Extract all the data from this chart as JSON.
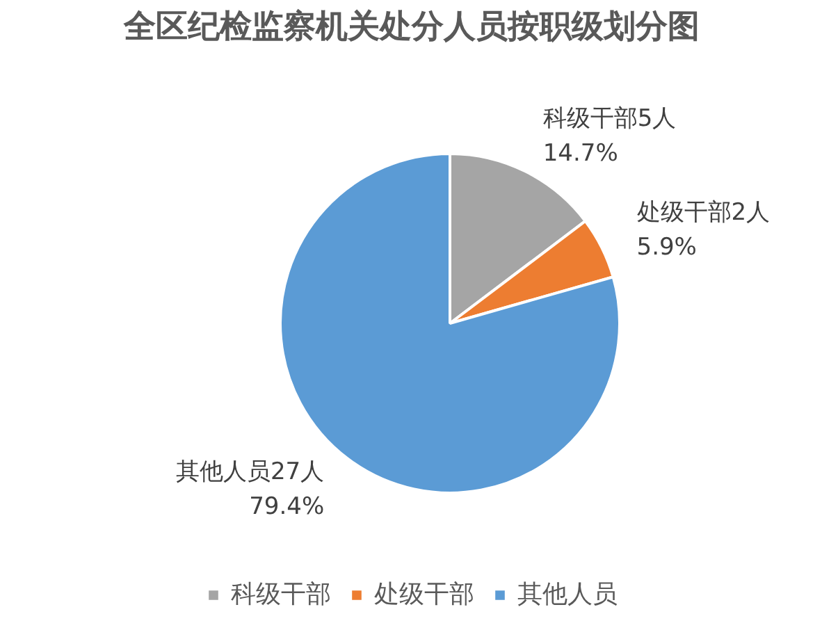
{
  "chart_data": {
    "type": "pie",
    "title": "全区纪检监察机关处分人员按职级划分图",
    "categories": [
      "科级干部",
      "处级干部",
      "其他人员"
    ],
    "values": [
      5,
      2,
      27
    ],
    "colors": [
      "#a5a5a5",
      "#ed7d31",
      "#5b9bd5"
    ],
    "value_labels": [
      "科级干部5人\n14.7%",
      "处级干部2人\n5.9%",
      "其他人员27人\n79.4%"
    ],
    "legend": "bottom"
  }
}
